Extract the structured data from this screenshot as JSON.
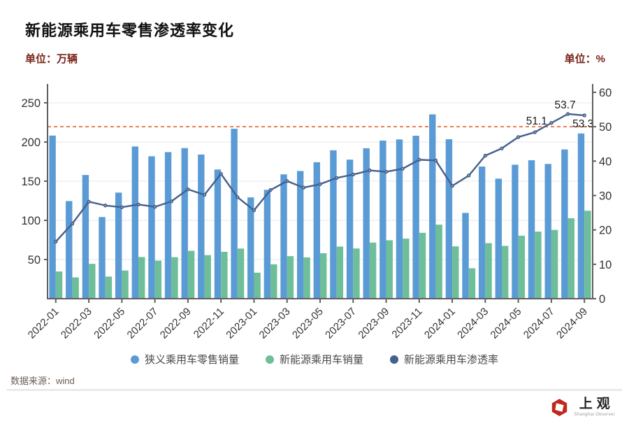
{
  "header": {
    "title": "新能源乘用车零售渗透率变化",
    "unit_left": "单位：万辆",
    "unit_right": "单位：%"
  },
  "chart_data": {
    "type": "bar",
    "subtype": "grouped-bars-with-line",
    "categories": [
      "2022-01",
      "2022-02",
      "2022-03",
      "2022-04",
      "2022-05",
      "2022-06",
      "2022-07",
      "2022-08",
      "2022-09",
      "2022-10",
      "2022-11",
      "2022-12",
      "2023-01",
      "2023-02",
      "2023-03",
      "2023-04",
      "2023-05",
      "2023-06",
      "2023-07",
      "2023-08",
      "2023-09",
      "2023-10",
      "2023-11",
      "2023-12",
      "2024-01",
      "2024-02",
      "2024-03",
      "2024-04",
      "2024-05",
      "2024-06",
      "2024-07",
      "2024-08",
      "2024-09"
    ],
    "x_label_every": 2,
    "series": [
      {
        "name": "狭义乘用车零售销量",
        "type": "bar",
        "axis": "left",
        "color": "#5B9BD5",
        "values": [
          208.2,
          124.6,
          157.9,
          104.2,
          135.4,
          194.3,
          181.8,
          187.1,
          192.2,
          184.0,
          164.9,
          216.9,
          129.3,
          139.0,
          158.7,
          163.0,
          174.2,
          189.4,
          177.5,
          192.0,
          201.8,
          203.3,
          208.0,
          235.3,
          203.5,
          109.5,
          168.7,
          153.2,
          171.0,
          176.7,
          172.0,
          190.5,
          210.9
        ]
      },
      {
        "name": "新能源乘用车销量",
        "type": "bar",
        "axis": "left",
        "color": "#6EBE9A",
        "values": [
          34.7,
          27.2,
          44.5,
          28.2,
          36.0,
          53.2,
          48.6,
          53.0,
          61.1,
          55.6,
          59.8,
          64.0,
          33.2,
          43.9,
          54.3,
          52.7,
          58.0,
          66.5,
          64.1,
          71.6,
          74.6,
          76.7,
          84.1,
          94.5,
          66.8,
          38.8,
          70.9,
          67.4,
          80.4,
          85.6,
          87.8,
          102.7,
          112.3
        ]
      },
      {
        "name": "新能源乘用车渗透率",
        "type": "line",
        "axis": "right",
        "color": "#44608C",
        "values": [
          16.6,
          21.8,
          28.2,
          27.1,
          26.6,
          27.4,
          26.7,
          28.3,
          31.8,
          30.2,
          36.3,
          29.5,
          25.7,
          31.6,
          34.2,
          32.3,
          33.3,
          35.1,
          36.1,
          37.3,
          36.9,
          37.8,
          40.4,
          40.2,
          32.8,
          35.8,
          41.6,
          43.7,
          47.0,
          48.4,
          51.1,
          53.7,
          53.3
        ]
      }
    ],
    "left_axis": {
      "unit": "万辆",
      "ticks": [
        50,
        100,
        150,
        200,
        250
      ],
      "range": [
        0,
        274
      ]
    },
    "right_axis": {
      "unit": "%",
      "ticks": [
        0,
        10,
        20,
        30,
        40,
        50,
        60
      ],
      "range": [
        0,
        61
      ]
    },
    "reference_line": {
      "axis": "right",
      "value": 50,
      "color": "#E8622D",
      "style": "dashed"
    },
    "point_labels": [
      {
        "index": 30,
        "text": "51.1",
        "placement": "left"
      },
      {
        "index": 31,
        "text": "53.7",
        "placement": "above"
      },
      {
        "index": 32,
        "text": "53.3",
        "placement": "below"
      }
    ],
    "grid": true,
    "legend_position": "bottom"
  },
  "legend": {
    "items": [
      {
        "label": "狭义乘用车零售销量",
        "color": "#5B9BD5"
      },
      {
        "label": "新能源乘用车销量",
        "color": "#6EBE9A"
      },
      {
        "label": "新能源乘用车渗透率",
        "color": "#44608C"
      }
    ]
  },
  "footer": {
    "source": "数据来源：wind",
    "logo_cn": "上观",
    "logo_en": "Shanghai Observer"
  },
  "colors": {
    "bar_retail": "#5B9BD5",
    "bar_nev": "#6EBE9A",
    "line_penetration": "#44608C",
    "reference_dashed": "#E8622D",
    "unit_text": "#7A241A",
    "gridline": "#E7E7E7",
    "axis_line": "#5F5F5F"
  }
}
